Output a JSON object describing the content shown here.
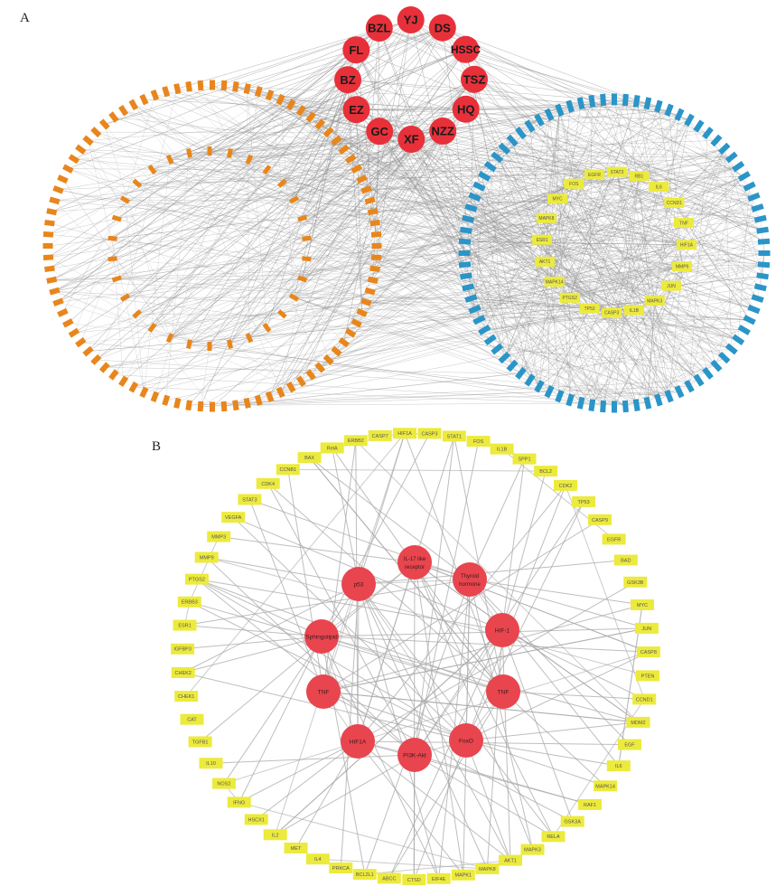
{
  "panels": {
    "a": {
      "label": "A",
      "herbs": [
        "DS",
        "HSSC",
        "TSZ",
        "HQ",
        "NZZ",
        "XF",
        "GC",
        "EZ",
        "BZ",
        "FL",
        "BZL",
        "YJ"
      ],
      "ingredient_outer_count": 88,
      "ingredient_inner_count": 30,
      "target_outer_count": 84,
      "hub_targets": [
        "RB1",
        "IL6",
        "CCND1",
        "TNF",
        "HIF1A",
        "MMP9",
        "JUN",
        "MAPK3",
        "IL1B",
        "CASP3",
        "TP53",
        "PTGS2",
        "MAPK14",
        "AKT1",
        "ESR1",
        "MAPK8",
        "MYC",
        "FOS",
        "EGFR",
        "STAT3"
      ],
      "colors": {
        "herb": "#e8303a",
        "ingredient": "#e8861c",
        "target": "#2a95c8",
        "hub": "#ecea3c",
        "edge": "#8a8a8a"
      }
    },
    "b": {
      "label": "B",
      "pathways": [
        "HIF-1",
        "TNF",
        "FoxO",
        "PI3K-Akt",
        "HIF1A",
        "TNF",
        "Sphingolipid",
        "p53",
        "IL-17 like receptor",
        "Thyroid hormone"
      ],
      "genes": [
        "CASP3",
        "STAT1",
        "FOS",
        "IL1B",
        "SPP1",
        "BCL2",
        "CDK2",
        "TP53",
        "CASP9",
        "EGFR",
        "BAD",
        "GSK3B",
        "MYC",
        "JUN",
        "CASP8",
        "PTEN",
        "CCND1",
        "MDM2",
        "EGF",
        "IL6",
        "MAPK14",
        "RAF1",
        "GSK3A",
        "RELA",
        "MAPK3",
        "AKT1",
        "MAPK8",
        "MAPK1",
        "EIF4E",
        "CTSD",
        "ABCC",
        "BCL2L1",
        "PRKCA",
        "IL4",
        "MET",
        "IL2",
        "HSCX1",
        "IFNG",
        "NOS2",
        "IL10",
        "TGFB1",
        "CAT",
        "CHEK1",
        "CHEK2",
        "IGFBP3",
        "ESR1",
        "ERBB3",
        "PTGS2",
        "MMP9",
        "MMP3",
        "VEGFA",
        "STAT3",
        "CDK4",
        "CCNB1",
        "BAX",
        "RelA",
        "ERBB2",
        "CASP7",
        "HIF1A"
      ],
      "colors": {
        "pathway": "#e8454f",
        "gene": "#ecea3c",
        "edge": "#a8a8a8"
      }
    }
  }
}
